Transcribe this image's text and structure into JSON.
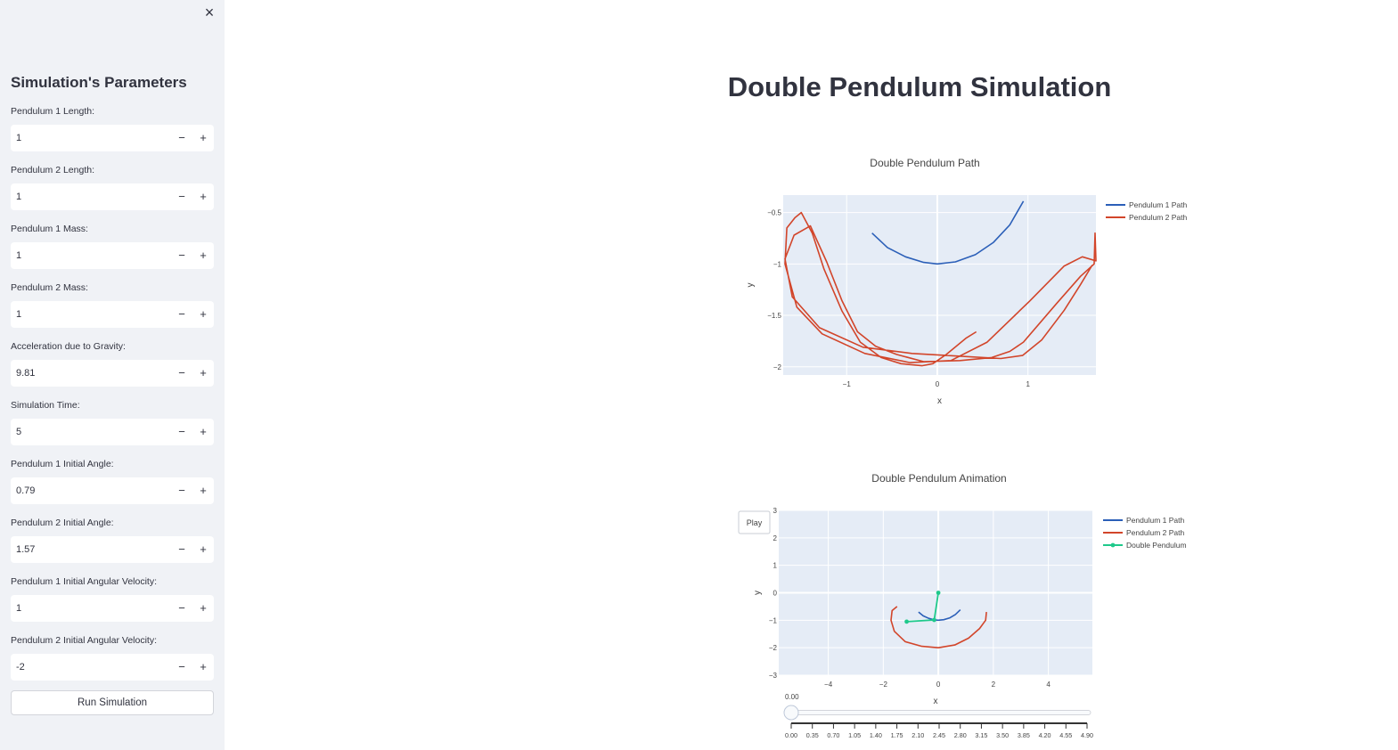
{
  "sidebar": {
    "close_icon": "×",
    "title": "Simulation's Parameters",
    "fields": [
      {
        "label": "Pendulum 1 Length:",
        "value": "1"
      },
      {
        "label": "Pendulum 2 Length:",
        "value": "1"
      },
      {
        "label": "Pendulum 1 Mass:",
        "value": "1"
      },
      {
        "label": "Pendulum 2 Mass:",
        "value": "1"
      },
      {
        "label": "Acceleration due to Gravity:",
        "value": "9.81"
      },
      {
        "label": "Simulation Time:",
        "value": "5"
      },
      {
        "label": "Pendulum 1 Initial Angle:",
        "value": "0.79"
      },
      {
        "label": "Pendulum 2 Initial Angle:",
        "value": "1.57"
      },
      {
        "label": "Pendulum 1 Initial Angular Velocity:",
        "value": "1"
      },
      {
        "label": "Pendulum 2 Initial Angular Velocity:",
        "value": "-2"
      }
    ],
    "stepper_minus": "−",
    "stepper_plus": "+",
    "run_label": "Run Simulation"
  },
  "main": {
    "title": "Double Pendulum Simulation"
  },
  "colors": {
    "sidebar_bg": "#f0f2f6",
    "pendulum1": "#2b5fb8",
    "pendulum2": "#d2452a",
    "double_pendulum": "#1fc98b",
    "plot_bg": "#e5ecf6"
  },
  "chart_data": [
    {
      "type": "line",
      "title": "Double Pendulum Path",
      "xlabel": "x",
      "ylabel": "y",
      "xlim": [
        -1.7,
        1.75
      ],
      "ylim": [
        -2.08,
        -0.33
      ],
      "xticks": [
        "−1",
        "0",
        "1"
      ],
      "yticks": [
        "−0.5",
        "−1",
        "−1.5",
        "−2"
      ],
      "legend": "top-right",
      "series": [
        {
          "name": "Pendulum 1 Path",
          "color": "#2b5fb8",
          "points": [
            [
              -0.72,
              -0.7
            ],
            [
              -0.55,
              -0.84
            ],
            [
              -0.35,
              -0.93
            ],
            [
              -0.15,
              -0.985
            ],
            [
              0,
              -1.0
            ],
            [
              0.2,
              -0.98
            ],
            [
              0.42,
              -0.91
            ],
            [
              0.62,
              -0.79
            ],
            [
              0.8,
              -0.62
            ],
            [
              0.95,
              -0.39
            ]
          ]
        },
        {
          "name": "Pendulum 2 Path",
          "color": "#d2452a",
          "points": [
            [
              0.43,
              -1.66
            ],
            [
              0.32,
              -1.72
            ],
            [
              0.1,
              -1.88
            ],
            [
              -0.05,
              -1.97
            ],
            [
              -0.17,
              -1.99
            ],
            [
              -0.4,
              -1.97
            ],
            [
              -0.62,
              -1.91
            ],
            [
              -0.85,
              -1.76
            ],
            [
              -1.05,
              -1.46
            ],
            [
              -1.25,
              -1.05
            ],
            [
              -1.38,
              -0.7
            ],
            [
              -1.5,
              -0.5
            ],
            [
              -1.57,
              -0.55
            ],
            [
              -1.66,
              -0.65
            ],
            [
              -1.68,
              -1.0
            ],
            [
              -1.55,
              -1.42
            ],
            [
              -1.27,
              -1.68
            ],
            [
              -0.8,
              -1.87
            ],
            [
              -0.3,
              -1.96
            ],
            [
              0.15,
              -1.94
            ],
            [
              0.55,
              -1.76
            ],
            [
              1.02,
              -1.36
            ],
            [
              1.4,
              -1.02
            ],
            [
              1.6,
              -0.93
            ],
            [
              1.75,
              -0.97
            ],
            [
              1.74,
              -0.7
            ],
            [
              1.73,
              -1.0
            ],
            [
              1.58,
              -1.12
            ],
            [
              1.32,
              -1.38
            ],
            [
              0.95,
              -1.76
            ],
            [
              0.8,
              -1.85
            ],
            [
              0.6,
              -1.91
            ],
            [
              0.25,
              -1.94
            ],
            [
              -0.15,
              -1.95
            ],
            [
              -0.45,
              -1.88
            ],
            [
              -0.68,
              -1.8
            ],
            [
              -0.88,
              -1.66
            ],
            [
              -1.05,
              -1.36
            ],
            [
              -1.22,
              -0.98
            ],
            [
              -1.4,
              -0.63
            ],
            [
              -1.58,
              -0.72
            ],
            [
              -1.68,
              -0.95
            ],
            [
              -1.6,
              -1.32
            ],
            [
              -1.3,
              -1.62
            ],
            [
              -0.82,
              -1.81
            ],
            [
              -0.28,
              -1.87
            ],
            [
              0.3,
              -1.9
            ],
            [
              0.7,
              -1.92
            ],
            [
              0.94,
              -1.89
            ],
            [
              1.15,
              -1.74
            ],
            [
              1.4,
              -1.45
            ],
            [
              1.58,
              -1.2
            ],
            [
              1.71,
              -1.01
            ]
          ]
        }
      ]
    },
    {
      "type": "line",
      "title": "Double Pendulum Animation",
      "xlabel": "x",
      "ylabel": "y",
      "xlim": [
        -5.8,
        5.6
      ],
      "ylim": [
        -3,
        3
      ],
      "xticks": [
        "−4",
        "−2",
        "0",
        "2",
        "4"
      ],
      "yticks": [
        "3",
        "2",
        "1",
        "0",
        "−1",
        "−2",
        "−3"
      ],
      "legend": "top-right",
      "series": [
        {
          "name": "Pendulum 1 Path",
          "color": "#2b5fb8",
          "points": [
            [
              -0.72,
              -0.7
            ],
            [
              -0.55,
              -0.84
            ],
            [
              -0.35,
              -0.93
            ],
            [
              -0.15,
              -0.985
            ],
            [
              0,
              -1.0
            ],
            [
              0.2,
              -0.98
            ],
            [
              0.42,
              -0.91
            ],
            [
              0.62,
              -0.79
            ],
            [
              0.8,
              -0.62
            ]
          ]
        },
        {
          "name": "Pendulum 2 Path",
          "color": "#d2452a",
          "points": [
            [
              -1.5,
              -0.5
            ],
            [
              -1.68,
              -0.65
            ],
            [
              -1.72,
              -1.0
            ],
            [
              -1.6,
              -1.4
            ],
            [
              -1.2,
              -1.78
            ],
            [
              -0.6,
              -1.95
            ],
            [
              0,
              -2.0
            ],
            [
              0.6,
              -1.9
            ],
            [
              1.1,
              -1.65
            ],
            [
              1.5,
              -1.3
            ],
            [
              1.72,
              -1.0
            ],
            [
              1.75,
              -0.7
            ]
          ]
        },
        {
          "name": "Double Pendulum",
          "color": "#1fc98b",
          "points": [
            [
              0,
              0
            ],
            [
              -0.15,
              -0.99
            ],
            [
              -1.15,
              -1.05
            ]
          ]
        }
      ],
      "play_label": "Play",
      "slider": {
        "current_label": "0.00",
        "value": 0,
        "steps": [
          "0.00",
          "0.35",
          "0.70",
          "1.05",
          "1.40",
          "1.75",
          "2.10",
          "2.45",
          "2.80",
          "3.15",
          "3.50",
          "3.85",
          "4.20",
          "4.55",
          "4.90"
        ]
      }
    }
  ]
}
